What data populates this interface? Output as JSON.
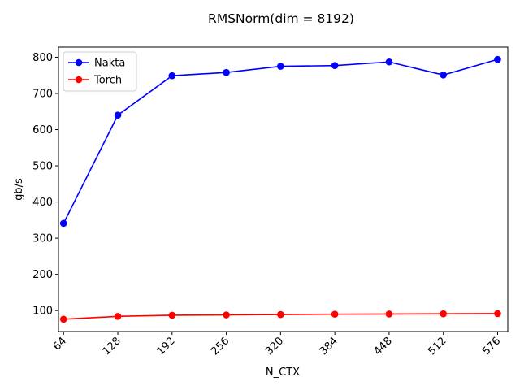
{
  "chart_data": {
    "type": "line",
    "title": "RMSNorm(dim = 8192)",
    "xlabel": "N_CTX",
    "ylabel": "gb/s",
    "x": [
      64,
      128,
      192,
      256,
      320,
      384,
      448,
      512,
      576
    ],
    "xtick_labels": [
      "64",
      "128",
      "192",
      "256",
      "320",
      "384",
      "448",
      "512",
      "576"
    ],
    "yticks": [
      100,
      200,
      300,
      400,
      500,
      600,
      700,
      800
    ],
    "ytick_labels": [
      "100",
      "200",
      "300",
      "400",
      "500",
      "600",
      "700",
      "800"
    ],
    "xlim": [
      58,
      588
    ],
    "ylim": [
      42,
      828
    ],
    "grid": false,
    "legend_position": "top-left",
    "xtick_rotation": 45,
    "series": [
      {
        "name": "Nakta",
        "color": "#0000ff",
        "values": [
          341,
          640,
          749,
          758,
          775,
          777,
          787,
          751,
          794
        ]
      },
      {
        "name": "Torch",
        "color": "#ff0000",
        "values": [
          76,
          84,
          87,
          88,
          89,
          90,
          90.5,
          91,
          91.5
        ]
      }
    ]
  }
}
